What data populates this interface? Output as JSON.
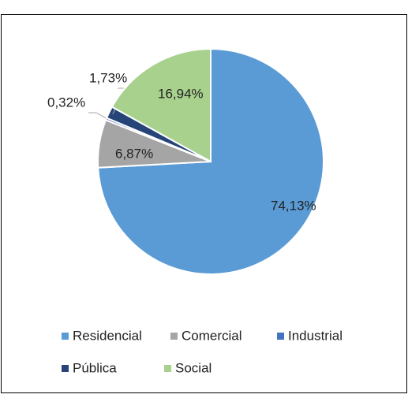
{
  "chart_data": {
    "type": "pie",
    "categories": [
      "Residencial",
      "Comercial",
      "Industrial",
      "Pública",
      "Social"
    ],
    "values": [
      74.13,
      6.87,
      0.32,
      1.73,
      16.94
    ],
    "value_labels": [
      "74,13%",
      "6,87%",
      "0,32%",
      "1,73%",
      "16,94%"
    ],
    "colors": [
      "#5b9bd5",
      "#a5a5a5",
      "#4472c4",
      "#264478",
      "#a9d18e"
    ],
    "legend": "bottom"
  }
}
